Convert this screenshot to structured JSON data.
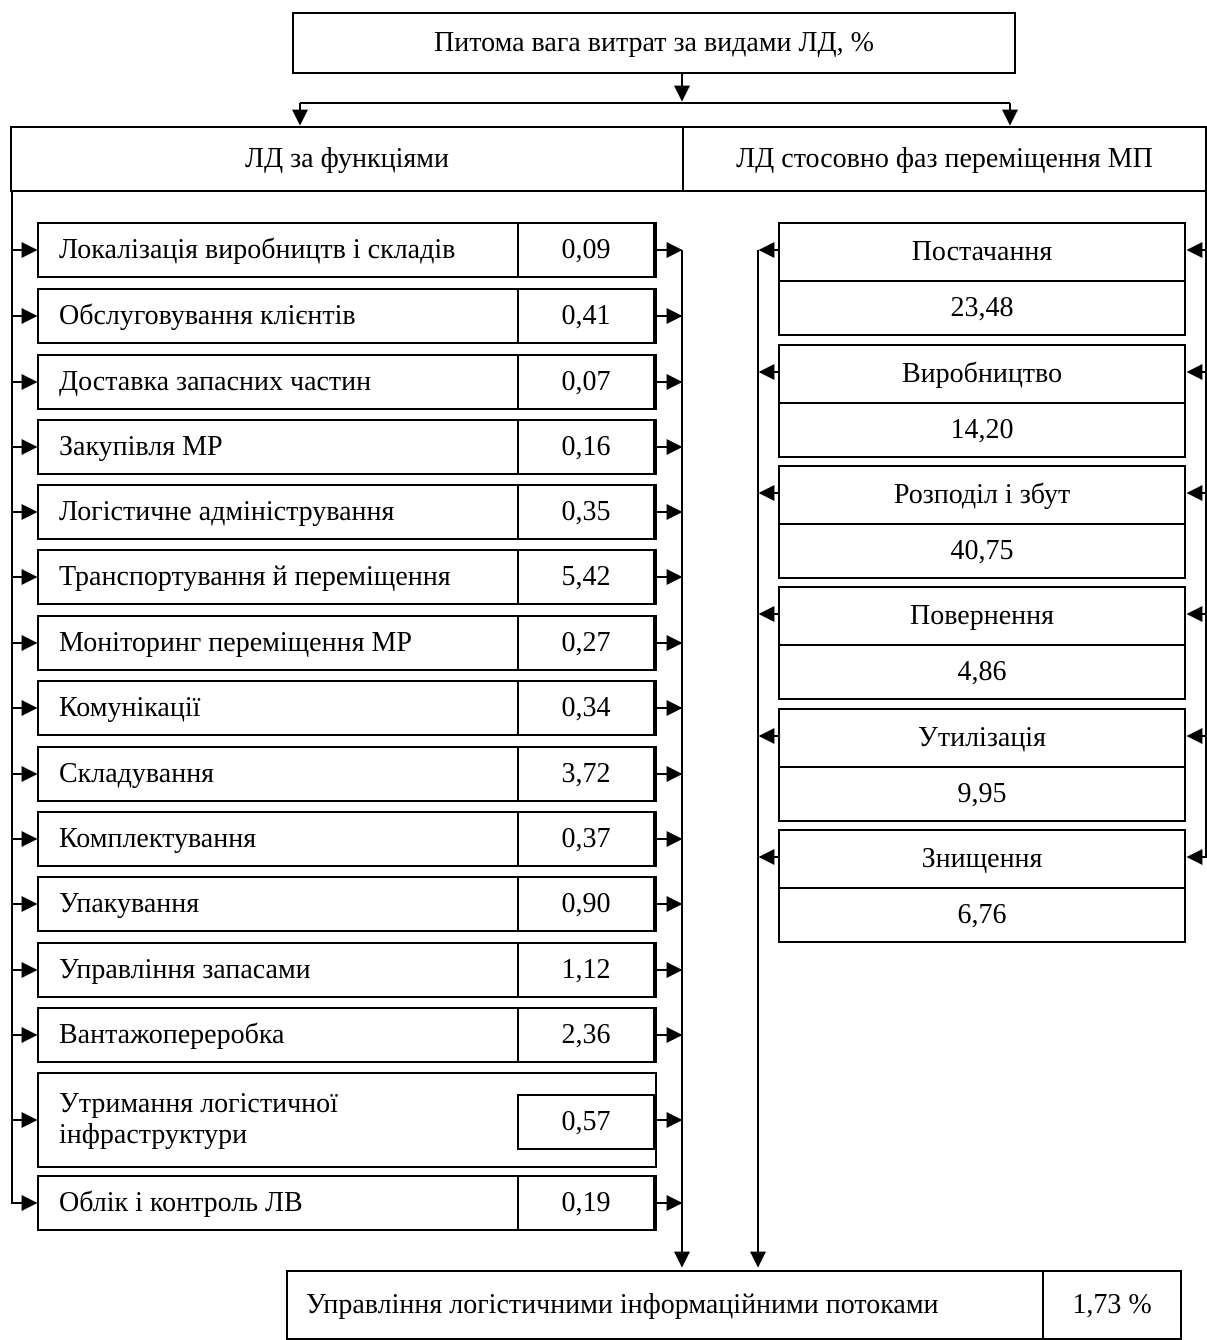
{
  "title": "Питома вага витрат за видами ЛД, %",
  "left_header": "ЛД за функціями",
  "right_header": "ЛД стосовно фаз переміщення МП",
  "functions": [
    {
      "label": "Локалізація виробництв і складів",
      "value": "0,09"
    },
    {
      "label": "Обслуговування клієнтів",
      "value": "0,41"
    },
    {
      "label": "Доставка запасних частин",
      "value": "0,07"
    },
    {
      "label": "Закупівля МР",
      "value": "0,16"
    },
    {
      "label": "Логістичне адміністрування",
      "value": "0,35"
    },
    {
      "label": "Транспортування й переміщення",
      "value": "5,42"
    },
    {
      "label": "Моніторинг переміщення МР",
      "value": "0,27"
    },
    {
      "label": "Комунікації",
      "value": "0,34"
    },
    {
      "label": "Складування",
      "value": "3,72"
    },
    {
      "label": "Комплектування",
      "value": "0,37"
    },
    {
      "label": "Упакування",
      "value": "0,90"
    },
    {
      "label": "Управління запасами",
      "value": "1,12"
    },
    {
      "label": "Вантажопереробка",
      "value": "2,36"
    },
    {
      "label": "Утримання логістичної інфраструктури",
      "value": "0,57"
    },
    {
      "label": "Облік і контроль ЛВ",
      "value": "0,19"
    }
  ],
  "phases": [
    {
      "label": "Постачання",
      "value": "23,48"
    },
    {
      "label": "Виробництво",
      "value": "14,20"
    },
    {
      "label": "Розподіл і збут",
      "value": "40,75"
    },
    {
      "label": "Повернення",
      "value": "4,86"
    },
    {
      "label": "Утилізація",
      "value": "9,95"
    },
    {
      "label": "Знищення",
      "value": "6,76"
    }
  ],
  "bottom": {
    "label": "Управління логістичними інформаційними потоками",
    "value": "1,73 %"
  }
}
